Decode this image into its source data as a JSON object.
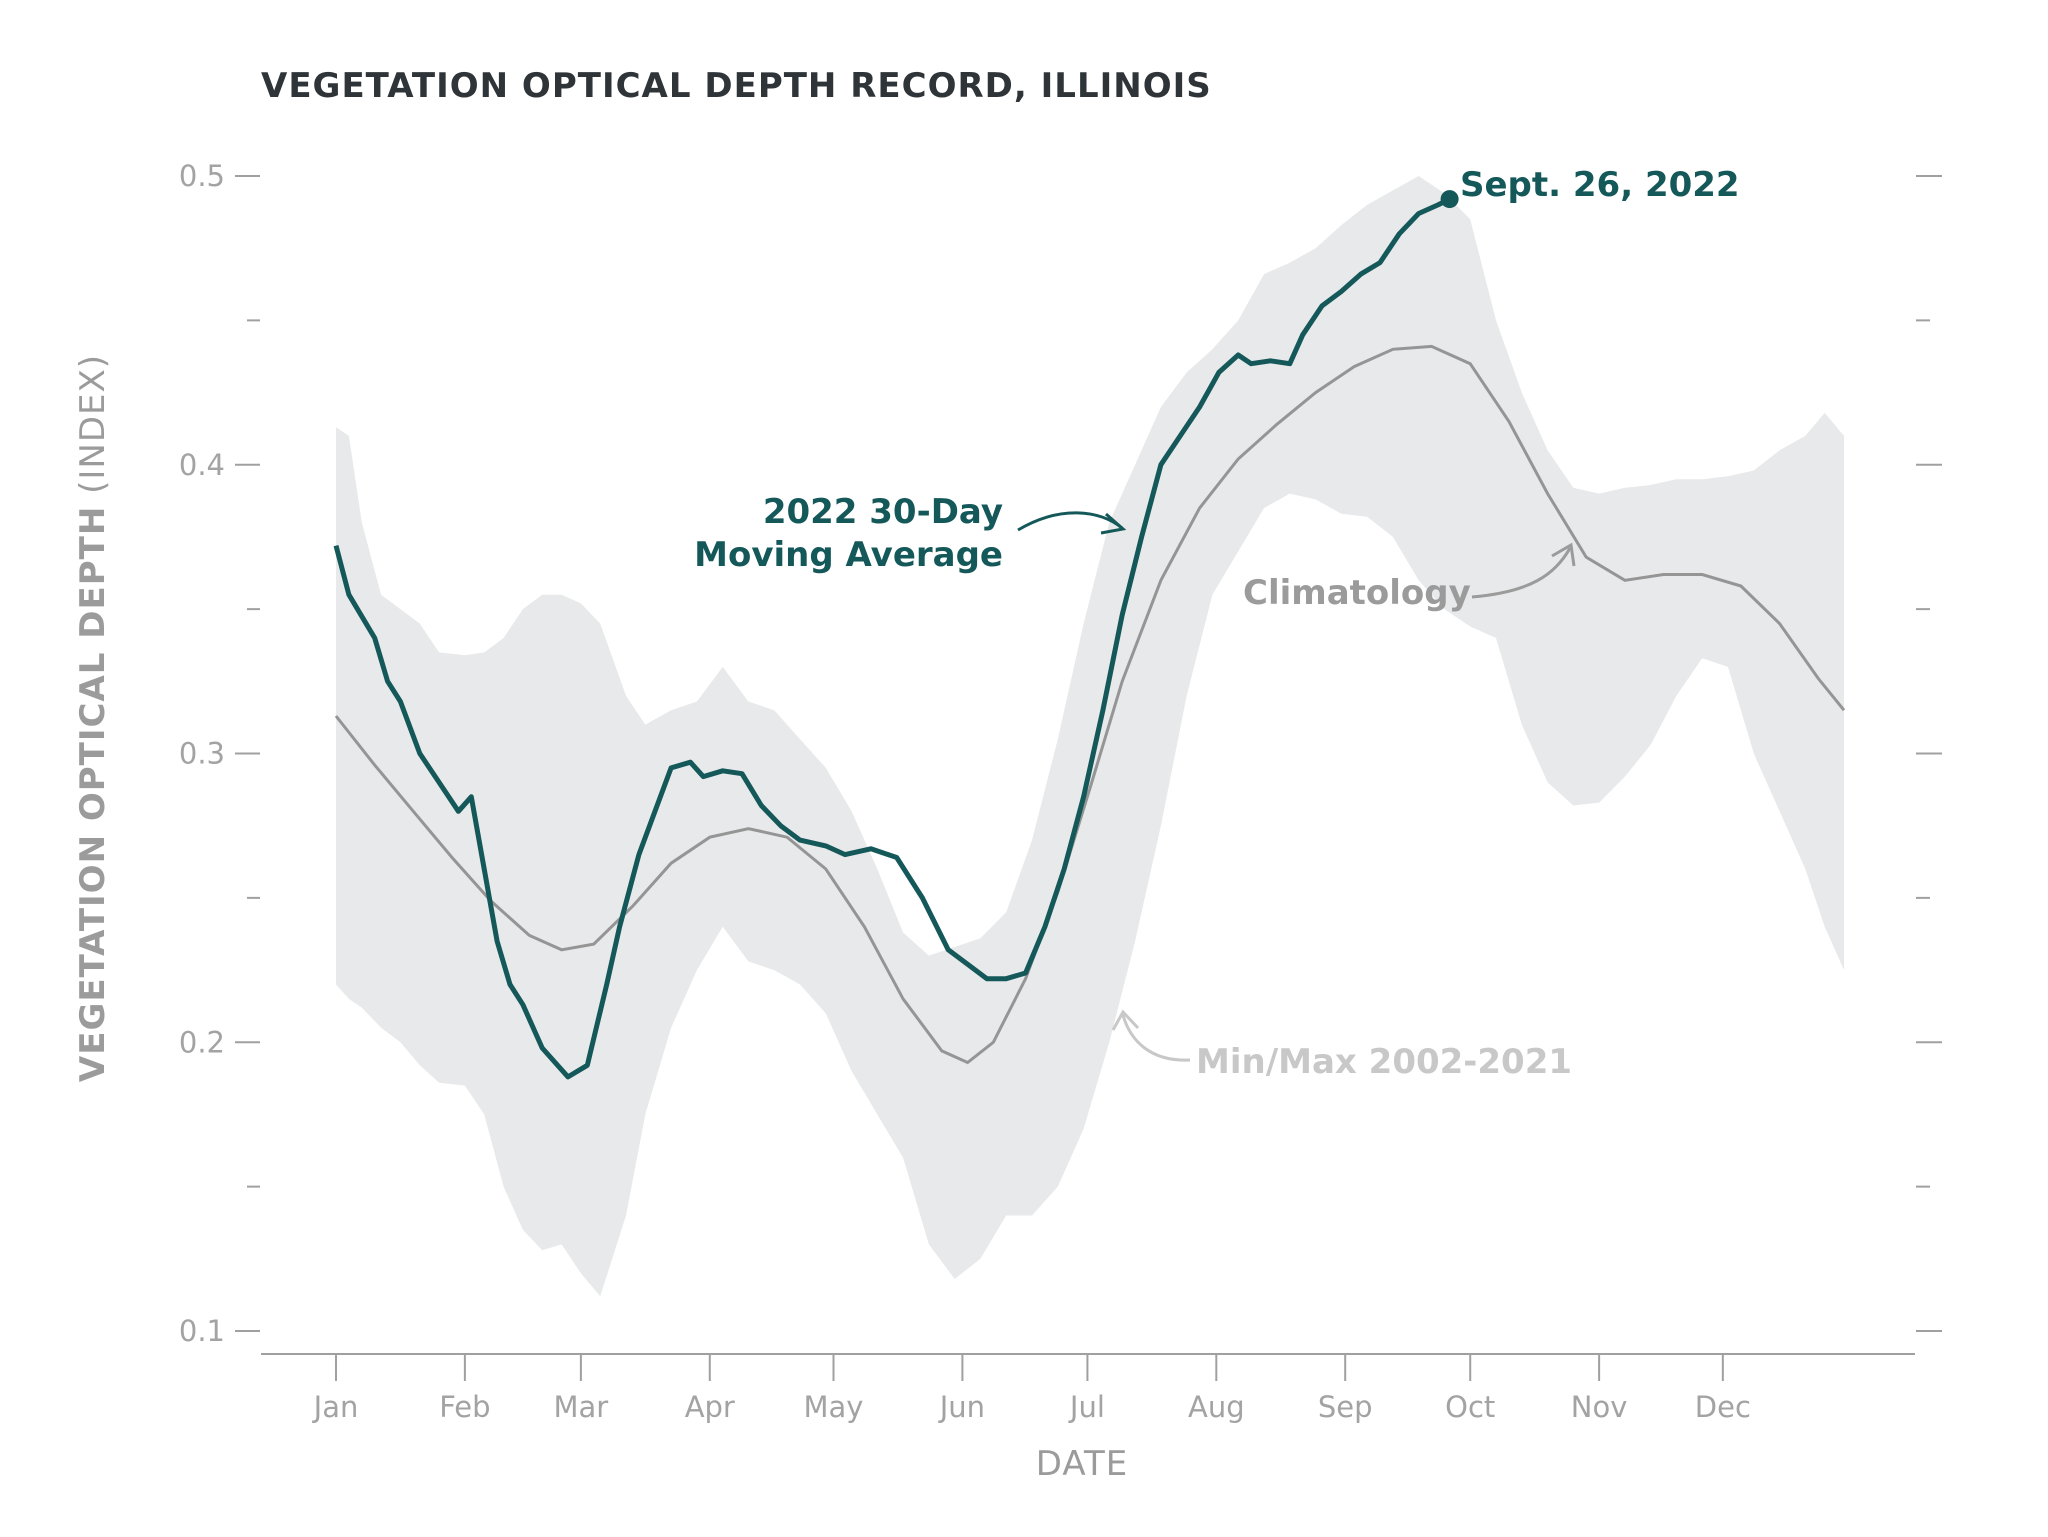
{
  "colors": {
    "series_2022": "#14585a",
    "climatology": "#959595",
    "band": "#e8e9ea",
    "axis": "#a0a0a0",
    "title": "#2f3438"
  },
  "chart_data": {
    "type": "line",
    "title": "VEGETATION OPTICAL DEPTH RECORD, ILLINOIS",
    "xlabel": "DATE",
    "ylabel_main": "VEGETATION OPTICAL DEPTH",
    "ylabel_suffix": " (INDEX)",
    "xlim": [
      0,
      11.7
    ],
    "ylim": [
      0.1,
      0.5
    ],
    "yticks": [
      {
        "value": 0.1,
        "label": "0.1"
      },
      {
        "value": 0.15,
        "label": ""
      },
      {
        "value": 0.2,
        "label": "0.2"
      },
      {
        "value": 0.25,
        "label": ""
      },
      {
        "value": 0.3,
        "label": "0.3"
      },
      {
        "value": 0.35,
        "label": ""
      },
      {
        "value": 0.4,
        "label": "0.4"
      },
      {
        "value": 0.45,
        "label": ""
      },
      {
        "value": 0.5,
        "label": "0.5"
      }
    ],
    "xticks": [
      {
        "value": 0,
        "label": "Jan"
      },
      {
        "value": 1,
        "label": "Feb"
      },
      {
        "value": 1.9,
        "label": "Mar"
      },
      {
        "value": 2.9,
        "label": "Apr"
      },
      {
        "value": 3.86,
        "label": "May"
      },
      {
        "value": 4.86,
        "label": "Jun"
      },
      {
        "value": 5.83,
        "label": "Jul"
      },
      {
        "value": 6.83,
        "label": "Aug"
      },
      {
        "value": 7.83,
        "label": "Sep"
      },
      {
        "value": 8.8,
        "label": "Oct"
      },
      {
        "value": 9.8,
        "label": "Nov"
      },
      {
        "value": 10.76,
        "label": "Dec"
      }
    ],
    "series": [
      {
        "name": "2022 30-Day Moving Average",
        "x": [
          0,
          0.1,
          0.3,
          0.4,
          0.5,
          0.65,
          0.8,
          0.95,
          1.05,
          1.15,
          1.25,
          1.35,
          1.45,
          1.6,
          1.8,
          1.95,
          2.1,
          2.2,
          2.35,
          2.5,
          2.6,
          2.75,
          2.85,
          3.0,
          3.15,
          3.3,
          3.45,
          3.6,
          3.8,
          3.95,
          4.15,
          4.35,
          4.55,
          4.75,
          4.9,
          5.05,
          5.2,
          5.35,
          5.5,
          5.65,
          5.8,
          5.95,
          6.1,
          6.25,
          6.4,
          6.55,
          6.7,
          6.85,
          7.0,
          7.1,
          7.25,
          7.4,
          7.5,
          7.65,
          7.8,
          7.95,
          8.1,
          8.25,
          8.4,
          8.55,
          8.64
        ],
        "y": [
          0.372,
          0.355,
          0.34,
          0.325,
          0.318,
          0.3,
          0.29,
          0.28,
          0.285,
          0.26,
          0.235,
          0.22,
          0.213,
          0.198,
          0.188,
          0.192,
          0.22,
          0.24,
          0.265,
          0.283,
          0.295,
          0.297,
          0.292,
          0.294,
          0.293,
          0.282,
          0.275,
          0.27,
          0.268,
          0.265,
          0.267,
          0.264,
          0.25,
          0.232,
          0.227,
          0.222,
          0.222,
          0.224,
          0.24,
          0.26,
          0.285,
          0.315,
          0.348,
          0.375,
          0.4,
          0.41,
          0.42,
          0.432,
          0.438,
          0.435,
          0.436,
          0.435,
          0.445,
          0.455,
          0.46,
          0.466,
          0.47,
          0.48,
          0.487,
          0.49,
          0.492
        ]
      },
      {
        "name": "Climatology",
        "x": [
          0,
          0.3,
          0.6,
          0.9,
          1.2,
          1.5,
          1.75,
          2.0,
          2.3,
          2.6,
          2.9,
          3.2,
          3.5,
          3.8,
          4.1,
          4.4,
          4.7,
          4.9,
          5.1,
          5.35,
          5.6,
          5.85,
          6.1,
          6.4,
          6.7,
          7.0,
          7.3,
          7.6,
          7.9,
          8.2,
          8.5,
          8.8,
          9.1,
          9.4,
          9.7,
          10.0,
          10.3,
          10.6,
          10.9,
          11.2,
          11.5,
          11.7
        ],
        "y": [
          0.313,
          0.296,
          0.28,
          0.264,
          0.249,
          0.237,
          0.232,
          0.234,
          0.247,
          0.262,
          0.271,
          0.274,
          0.271,
          0.26,
          0.24,
          0.215,
          0.197,
          0.193,
          0.2,
          0.222,
          0.252,
          0.288,
          0.325,
          0.36,
          0.385,
          0.402,
          0.414,
          0.425,
          0.434,
          0.44,
          0.441,
          0.435,
          0.415,
          0.39,
          0.368,
          0.36,
          0.362,
          0.362,
          0.358,
          0.345,
          0.326,
          0.315
        ]
      },
      {
        "name": "Min/Max 2002-2021",
        "x": [
          0,
          0.1,
          0.2,
          0.35,
          0.5,
          0.65,
          0.8,
          1.0,
          1.15,
          1.3,
          1.45,
          1.6,
          1.75,
          1.9,
          2.05,
          2.25,
          2.4,
          2.6,
          2.8,
          3.0,
          3.2,
          3.4,
          3.6,
          3.8,
          4.0,
          4.2,
          4.4,
          4.6,
          4.8,
          5.0,
          5.2,
          5.4,
          5.6,
          5.8,
          6.0,
          6.2,
          6.4,
          6.6,
          6.8,
          7.0,
          7.2,
          7.4,
          7.6,
          7.8,
          8.0,
          8.2,
          8.4,
          8.6,
          8.8,
          9.0,
          9.2,
          9.4,
          9.6,
          9.8,
          10.0,
          10.2,
          10.4,
          10.6,
          10.8,
          11.0,
          11.2,
          11.4,
          11.55,
          11.7
        ],
        "min": [
          0.22,
          0.215,
          0.212,
          0.205,
          0.2,
          0.192,
          0.186,
          0.185,
          0.175,
          0.15,
          0.135,
          0.128,
          0.13,
          0.12,
          0.112,
          0.14,
          0.175,
          0.205,
          0.225,
          0.24,
          0.228,
          0.225,
          0.22,
          0.21,
          0.19,
          0.175,
          0.16,
          0.13,
          0.118,
          0.125,
          0.14,
          0.14,
          0.15,
          0.17,
          0.2,
          0.235,
          0.275,
          0.32,
          0.355,
          0.37,
          0.385,
          0.39,
          0.388,
          0.383,
          0.382,
          0.375,
          0.36,
          0.35,
          0.344,
          0.34,
          0.31,
          0.29,
          0.282,
          0.283,
          0.292,
          0.303,
          0.32,
          0.333,
          0.33,
          0.3,
          0.28,
          0.26,
          0.24,
          0.225
        ],
        "max": [
          0.413,
          0.41,
          0.38,
          0.355,
          0.35,
          0.345,
          0.335,
          0.334,
          0.335,
          0.34,
          0.35,
          0.355,
          0.355,
          0.352,
          0.345,
          0.32,
          0.31,
          0.315,
          0.318,
          0.33,
          0.318,
          0.315,
          0.305,
          0.295,
          0.28,
          0.26,
          0.238,
          0.23,
          0.233,
          0.236,
          0.245,
          0.27,
          0.305,
          0.345,
          0.38,
          0.4,
          0.42,
          0.432,
          0.44,
          0.45,
          0.466,
          0.47,
          0.475,
          0.483,
          0.49,
          0.495,
          0.5,
          0.494,
          0.485,
          0.45,
          0.425,
          0.405,
          0.392,
          0.39,
          0.392,
          0.393,
          0.395,
          0.395,
          0.396,
          0.398,
          0.405,
          0.41,
          0.418,
          0.41
        ]
      }
    ],
    "annotations": {
      "endpoint": {
        "label": "Sept. 26, 2022",
        "x": 8.64,
        "y": 0.492
      },
      "series_2022_label_line1": "2022 30-Day",
      "series_2022_label_line2": "Moving Average",
      "climatology_label": "Climatology",
      "minmax_label": "Min/Max 2002-2021"
    }
  }
}
